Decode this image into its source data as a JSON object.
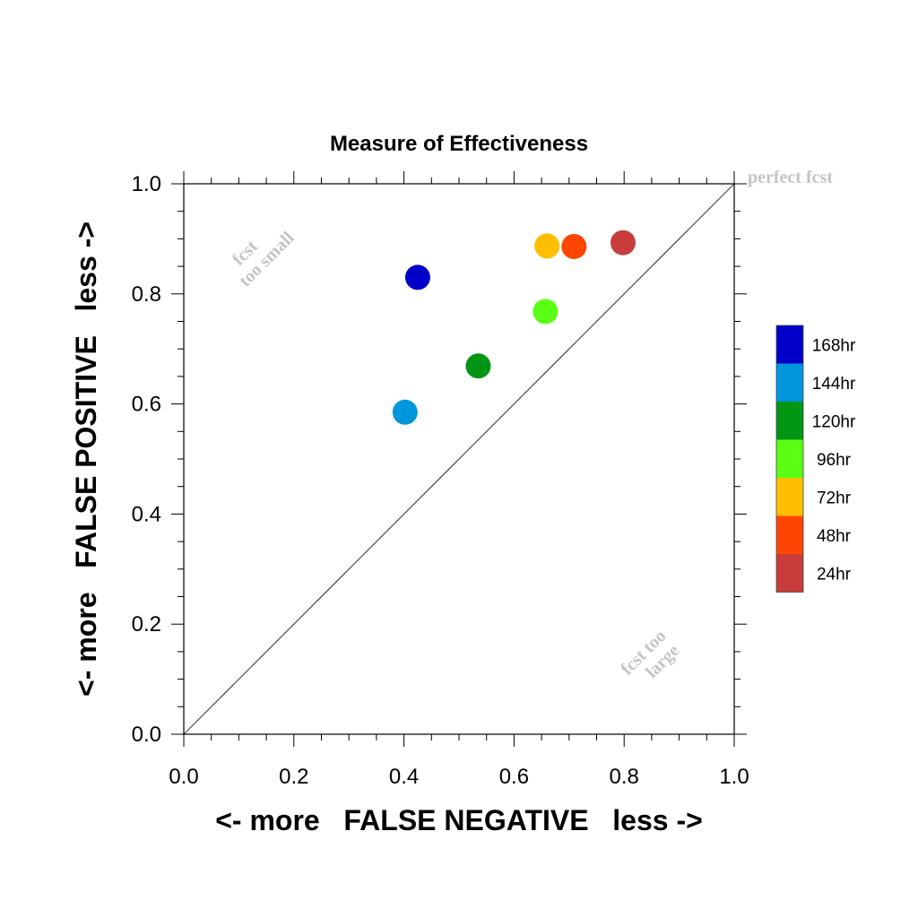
{
  "chart_data": {
    "type": "scatter",
    "title": "Measure of Effectiveness",
    "xlabel": "<- more   FALSE NEGATIVE   less ->",
    "ylabel": "<- more   FALSE POSITIVE   less ->",
    "xlim": [
      0,
      1
    ],
    "ylim": [
      0,
      1
    ],
    "x_ticks": [
      "0.0",
      "0.2",
      "0.4",
      "0.6",
      "0.8",
      "1.0"
    ],
    "y_ticks": [
      "0.0",
      "0.2",
      "0.4",
      "0.6",
      "0.8",
      "1.0"
    ],
    "grid": false,
    "diagonal_reference_line": true,
    "annotations": {
      "perfect": "perfect fcst",
      "too_small_line1": "fcst",
      "too_small_line2": "too small",
      "too_large_line1": "fcst too",
      "too_large_line2": "large"
    },
    "legend_position": "right",
    "series": [
      {
        "name": "168hr",
        "color": "#0000C8",
        "x": 0.425,
        "y": 0.83
      },
      {
        "name": "144hr",
        "color": "#0096DC",
        "x": 0.402,
        "y": 0.585
      },
      {
        "name": "120hr",
        "color": "#009614",
        "x": 0.535,
        "y": 0.669
      },
      {
        "name": "96hr",
        "color": "#5AFF14",
        "x": 0.657,
        "y": 0.768
      },
      {
        "name": "72hr",
        "color": "#FFBE00",
        "x": 0.66,
        "y": 0.887
      },
      {
        "name": "48hr",
        "color": "#FF4600",
        "x": 0.709,
        "y": 0.886
      },
      {
        "name": "24hr",
        "color": "#C83C3C",
        "x": 0.798,
        "y": 0.893
      }
    ]
  }
}
